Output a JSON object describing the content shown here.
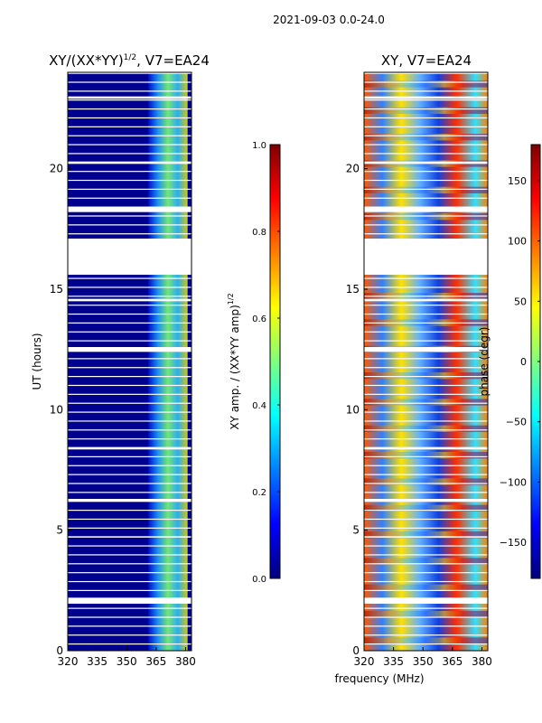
{
  "header": {
    "suptitle": "2021-09-03 0.0-24.0"
  },
  "chart_data": [
    {
      "type": "heatmap",
      "title": "XY/(XX*YY)",
      "title_exponent": "1/2",
      "title_suffix": ", V7=EA24",
      "xlabel": "",
      "ylabel": "UT (hours)",
      "xlim": [
        320,
        383
      ],
      "ylim": [
        0,
        24
      ],
      "xticks": [
        "320",
        "335",
        "350",
        "365",
        "380"
      ],
      "xtick_values": [
        320,
        335,
        350,
        365,
        380
      ],
      "yticks": [
        "0",
        "5",
        "10",
        "15",
        "20"
      ],
      "ytick_values": [
        0,
        5,
        10,
        15,
        20
      ],
      "colorbar": {
        "label": "XY amp. / (XX*YY amp)",
        "label_exponent": "1/2",
        "range": [
          0.0,
          1.0
        ],
        "ticks": [
          "0.0",
          "0.2",
          "0.4",
          "0.6",
          "0.8",
          "1.0"
        ],
        "tick_values": [
          0.0,
          0.2,
          0.4,
          0.6,
          0.8,
          1.0
        ],
        "colormap": "jet"
      }
    },
    {
      "type": "heatmap",
      "title": "XY, V7=EA24",
      "xlabel": "frequency (MHz)",
      "ylabel": "",
      "xlim": [
        320,
        383
      ],
      "ylim": [
        0,
        24
      ],
      "xticks": [
        "320",
        "335",
        "350",
        "365",
        "380"
      ],
      "xtick_values": [
        320,
        335,
        350,
        365,
        380
      ],
      "yticks": [
        "0",
        "5",
        "10",
        "15",
        "20"
      ],
      "ytick_values": [
        0,
        5,
        10,
        15,
        20
      ],
      "colorbar": {
        "label": "phase (degr)",
        "range": [
          -180,
          180
        ],
        "ticks": [
          "−150",
          "−100",
          "−50",
          "0",
          "50",
          "100",
          "150"
        ],
        "tick_values": [
          -150,
          -100,
          -50,
          0,
          50,
          100,
          150
        ],
        "colormap": "jet"
      }
    }
  ],
  "data_gaps_hours": [
    [
      17.1,
      15.6
    ],
    [
      2.2,
      1.95
    ],
    [
      8.45,
      8.35
    ],
    [
      6.3,
      6.2
    ],
    [
      4.75,
      4.7
    ],
    [
      12.6,
      12.4
    ],
    [
      14.6,
      14.5
    ],
    [
      20.3,
      20.2
    ],
    [
      23.0,
      22.9
    ],
    [
      18.4,
      18.2
    ]
  ],
  "active_band_mhz": [
    361,
    381
  ]
}
